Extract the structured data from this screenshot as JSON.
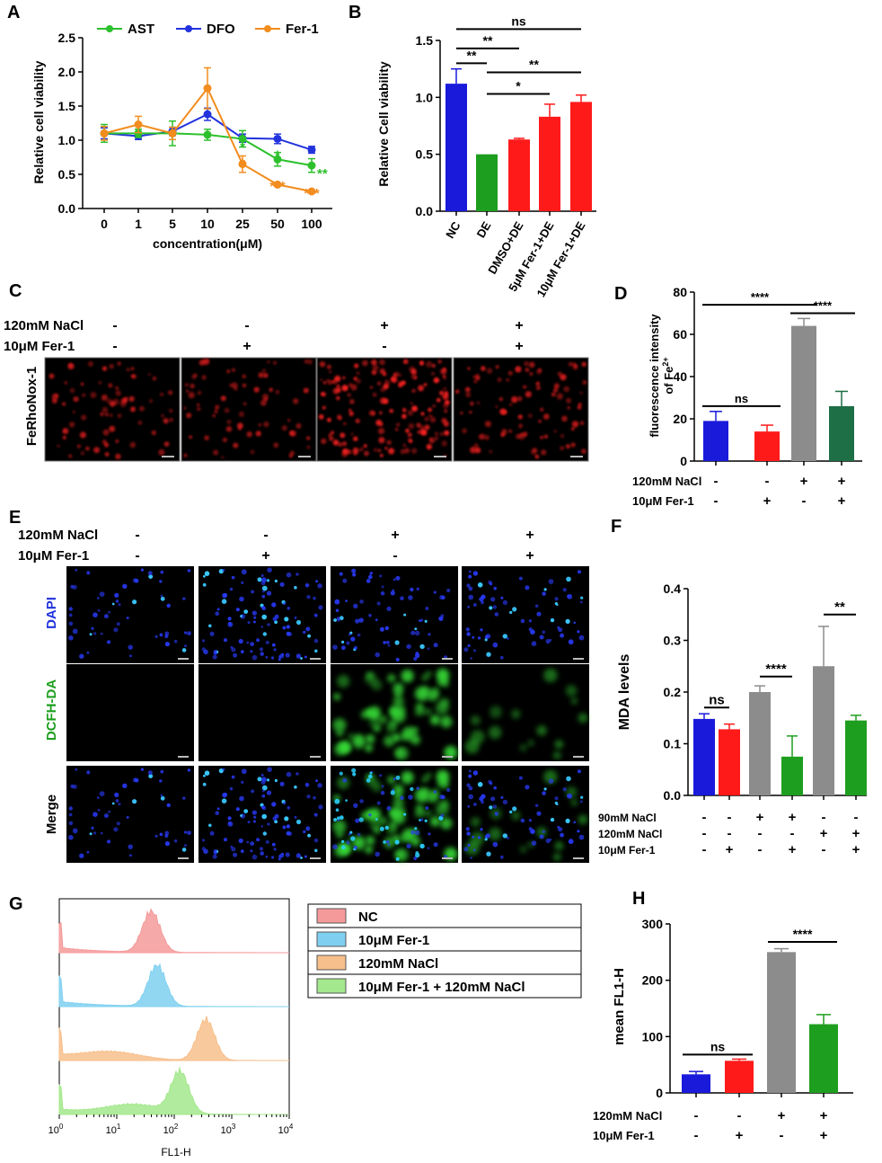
{
  "colors": {
    "blue": "#1a1adb",
    "green": "#1e9e1e",
    "red": "#ff1a1a",
    "gray": "#8c8c8c",
    "darkgreen": "#1e6e46",
    "orange": "#f28c1e",
    "lightgreen": "#2cc02c",
    "fluor_red": "#ff2020",
    "fluor_blue": "#2a3cff",
    "fluor_green": "#38e038",
    "hist_red": "#f59a9a",
    "hist_cyan": "#7fd0f0",
    "hist_orange": "#f7bf8c",
    "hist_green": "#a3e88c"
  },
  "panel_letters": {
    "A": "A",
    "B": "B",
    "C": "C",
    "D": "D",
    "E": "E",
    "F": "F",
    "G": "G",
    "H": "H"
  },
  "chart_data": [
    {
      "id": "A",
      "type": "line",
      "ylabel": "Relative cell viability",
      "xlabel": "concentration(μM)",
      "ylim": [
        0,
        2.5
      ],
      "yticks": [
        "0.0",
        "0.5",
        "1.0",
        "1.5",
        "2.0",
        "2.5"
      ],
      "categories": [
        "0",
        "1",
        "5",
        "10",
        "25",
        "50",
        "100"
      ],
      "legend": "top",
      "series": [
        {
          "name": "AST",
          "color": "#2cc02c",
          "values": [
            1.1,
            1.1,
            1.1,
            1.08,
            1.02,
            0.72,
            0.63
          ],
          "errors": [
            0.13,
            0.06,
            0.18,
            0.08,
            0.12,
            0.1,
            0.1
          ]
        },
        {
          "name": "DFO",
          "color": "#2233dd",
          "values": [
            1.1,
            1.06,
            1.13,
            1.38,
            1.03,
            1.02,
            0.86
          ],
          "errors": [
            0.08,
            0.05,
            0.06,
            0.09,
            0.06,
            0.07,
            0.05
          ]
        },
        {
          "name": "Fer-1",
          "color": "#f28c1e",
          "values": [
            1.1,
            1.23,
            1.1,
            1.76,
            0.65,
            0.35,
            0.25
          ],
          "errors": [
            0.1,
            0.12,
            0.09,
            0.3,
            0.12,
            0.02,
            0.02
          ]
        }
      ],
      "annotations": [
        {
          "text": "*",
          "color": "#2cc02c",
          "category": "25",
          "y": 1.02
        },
        {
          "text": "*",
          "color": "#2cc02c",
          "category": "50",
          "y": 0.9
        },
        {
          "text": "**",
          "color": "#2cc02c",
          "category": "100",
          "y": 0.63
        },
        {
          "text": "*",
          "color": "#f28c1e",
          "category": "25",
          "y": 0.78
        },
        {
          "text": "***",
          "color": "#f28c1e",
          "category": "50",
          "y": 0.45
        },
        {
          "text": "***",
          "color": "#f28c1e",
          "category": "100",
          "y": 0.34
        }
      ]
    },
    {
      "id": "B",
      "type": "bar",
      "ylabel": "Relative Cell viability",
      "ylim": [
        0,
        1.5
      ],
      "yticks": [
        "0.0",
        "0.5",
        "1.0",
        "1.5"
      ],
      "categories": [
        "NC",
        "DE",
        "DMSO+DE",
        "5μM Fer-1+DE",
        "10μM Fer-1+DE"
      ],
      "values": [
        1.12,
        0.5,
        0.63,
        0.83,
        0.96
      ],
      "errors": [
        0.13,
        0,
        0.01,
        0.11,
        0.06
      ],
      "bar_colors": [
        "#1a1adb",
        "#1e9e1e",
        "#ff1a1a",
        "#ff1a1a",
        "#ff1a1a"
      ],
      "significance": [
        {
          "text": "ns",
          "from": 0,
          "to": 4,
          "y": 1.6
        },
        {
          "text": "**",
          "from": 0,
          "to": 2,
          "y": 1.43
        },
        {
          "text": "**",
          "from": 0,
          "to": 1,
          "y": 1.3
        },
        {
          "text": "**",
          "from": 1,
          "to": 4,
          "y": 1.22
        },
        {
          "text": "*",
          "from": 1,
          "to": 3,
          "y": 1.03
        }
      ]
    },
    {
      "id": "D",
      "type": "bar",
      "ylabel_line1": "fluorescence intensity",
      "ylabel_line2": "of Fe",
      "ylabel_sup": "2+",
      "ylim": [
        0,
        80
      ],
      "yticks": [
        "0",
        "20",
        "40",
        "60",
        "80"
      ],
      "values": [
        19,
        14,
        64,
        26
      ],
      "errors": [
        4.5,
        3,
        3.5,
        7
      ],
      "bar_colors": [
        "#1a1adb",
        "#ff1a1a",
        "#8c8c8c",
        "#1e6e46"
      ],
      "significance": [
        {
          "text": "****",
          "from": 0,
          "to": 2,
          "y": 74
        },
        {
          "text": "****",
          "from": 2,
          "to": 3,
          "y": 70
        },
        {
          "text": "ns",
          "from": 0,
          "to": 1,
          "y": 26
        }
      ],
      "treatment_rows": [
        {
          "label": "120mM NaCl",
          "marks": [
            "-",
            "-",
            "+",
            "+"
          ]
        },
        {
          "label": "10μM Fer-1",
          "marks": [
            "-",
            "+",
            "-",
            "+"
          ]
        }
      ]
    },
    {
      "id": "F",
      "type": "bar",
      "ylabel": "MDA levels",
      "ylim": [
        0,
        0.4
      ],
      "yticks": [
        "0.0",
        "0.1",
        "0.2",
        "0.3",
        "0.4"
      ],
      "values": [
        0.148,
        0.128,
        0.2,
        0.075,
        0.25,
        0.145
      ],
      "errors": [
        0.01,
        0.01,
        0.012,
        0.04,
        0.077,
        0.01
      ],
      "bar_colors": [
        "#1a1adb",
        "#ff1a1a",
        "#8c8c8c",
        "#1e9e1e",
        "#8c8c8c",
        "#1e9e1e"
      ],
      "significance": [
        {
          "text": "ns",
          "from": 0,
          "to": 1,
          "y": 0.17
        },
        {
          "text": "****",
          "from": 2,
          "to": 3,
          "y": 0.23
        },
        {
          "text": "**",
          "from": 4,
          "to": 5,
          "y": 0.35
        }
      ],
      "treatment_rows": [
        {
          "label": "90mM NaCl",
          "marks": [
            "-",
            "-",
            "+",
            "+",
            "-",
            "-"
          ]
        },
        {
          "label": "120mM NaCl",
          "marks": [
            "-",
            "-",
            "-",
            "-",
            "+",
            "+"
          ]
        },
        {
          "label": "10μM Fer-1",
          "marks": [
            "-",
            "+",
            "-",
            "+",
            "-",
            "+"
          ]
        }
      ]
    },
    {
      "id": "G",
      "type": "area",
      "xlabel": "FL1-H",
      "xticks": [
        {
          "base": "10",
          "exp": "0"
        },
        {
          "base": "10",
          "exp": "1"
        },
        {
          "base": "10",
          "exp": "2"
        },
        {
          "base": "10",
          "exp": "3"
        },
        {
          "base": "10",
          "exp": "4"
        }
      ],
      "xlim_log10": [
        0,
        4
      ],
      "series": [
        {
          "name": "NC",
          "color": "#f59a9a",
          "peak_log10": 1.6
        },
        {
          "name": "10μM Fer-1",
          "color": "#7fd0f0",
          "peak_log10": 1.7
        },
        {
          "name": "120mM NaCl",
          "color": "#f7bf8c",
          "peak_log10": 2.55
        },
        {
          "name": "10μM Fer-1 + 120mM NaCl",
          "color": "#a3e88c",
          "peak_log10": 2.1
        }
      ],
      "legend": "right"
    },
    {
      "id": "H",
      "type": "bar",
      "ylabel": "mean FL1-H",
      "ylim": [
        0,
        300
      ],
      "yticks": [
        "0",
        "100",
        "200",
        "300"
      ],
      "values": [
        33,
        57,
        250,
        122
      ],
      "errors": [
        5,
        3,
        6,
        17
      ],
      "bar_colors": [
        "#1a1adb",
        "#ff1a1a",
        "#8c8c8c",
        "#1e9e1e"
      ],
      "significance": [
        {
          "text": "ns",
          "from": 0,
          "to": 1,
          "y": 68
        },
        {
          "text": "****",
          "from": 2,
          "to": 3,
          "y": 268
        }
      ],
      "treatment_rows": [
        {
          "label": "120mM NaCl",
          "marks": [
            "-",
            "-",
            "+",
            "+"
          ]
        },
        {
          "label": "10μM Fer-1",
          "marks": [
            "-",
            "+",
            "-",
            "+"
          ]
        }
      ]
    }
  ],
  "panel_C": {
    "row_label": "FeRhoNox-1",
    "treatment_rows": [
      {
        "label": "120mM NaCl",
        "marks": [
          "-",
          "-",
          "+",
          "+"
        ]
      },
      {
        "label": "10μM Fer-1",
        "marks": [
          "-",
          "+",
          "-",
          "+"
        ]
      }
    ],
    "densities": [
      0.3,
      0.25,
      1.0,
      0.45
    ]
  },
  "panel_E": {
    "row_labels": [
      "DAPI",
      "DCFH-DA",
      "Merge"
    ],
    "treatment_rows": [
      {
        "label": "120mM NaCl",
        "marks": [
          "-",
          "-",
          "+",
          "+"
        ]
      },
      {
        "label": "10μM Fer-1",
        "marks": [
          "-",
          "+",
          "-",
          "+"
        ]
      }
    ],
    "green_levels": [
      0.0,
      0.0,
      1.0,
      0.25
    ]
  }
}
